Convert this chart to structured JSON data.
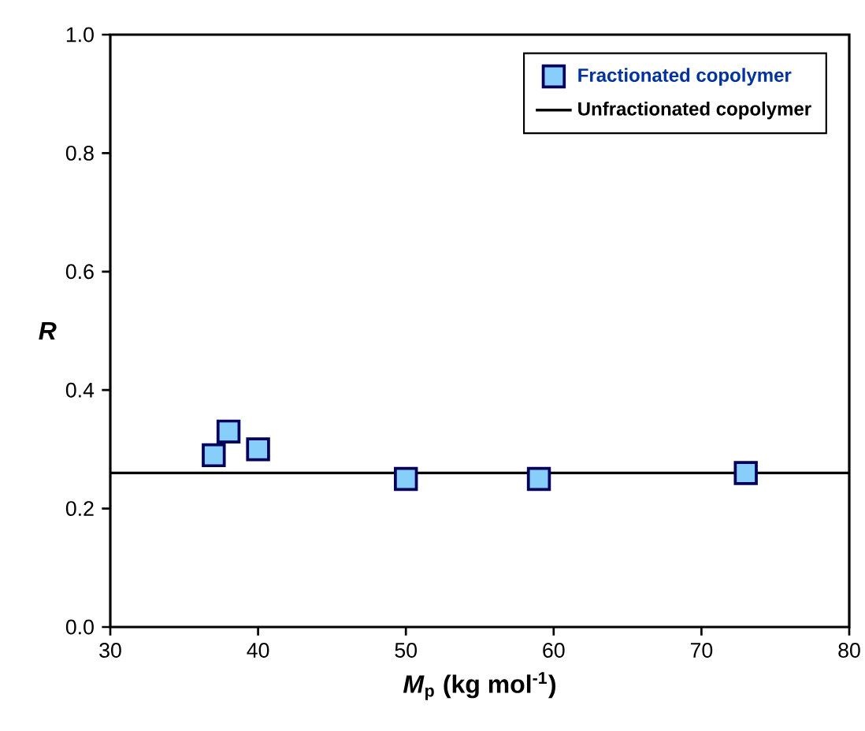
{
  "chart_data": {
    "type": "scatter",
    "xlabel": "*M*$_{p}$ (kg mol$^{-1}$)",
    "ylabel": "R",
    "xlim": [
      30,
      80
    ],
    "ylim": [
      0,
      1
    ],
    "xticks": [
      30,
      40,
      50,
      60,
      70,
      80
    ],
    "yticks": [
      {
        "value": 0,
        "label": "0.0"
      },
      {
        "value": 0.2,
        "label": "0.2"
      },
      {
        "value": 0.4,
        "label": "0.4"
      },
      {
        "value": 0.6,
        "label": "0.6"
      },
      {
        "value": 0.8,
        "label": "0.8"
      },
      {
        "value": 1,
        "label": "1.0"
      }
    ],
    "legend": "top right",
    "grid": false,
    "series": [
      {
        "name": "Fractionated copolymer",
        "color": "#87cefa",
        "marker": "square",
        "x": [
          37,
          38,
          40,
          50,
          59,
          73
        ],
        "values": [
          0.29,
          0.33,
          0.3,
          0.25,
          0.25,
          0.26
        ]
      },
      {
        "name": "Unfractionated copolymer",
        "type": "line",
        "color": "#000000",
        "marker": "none",
        "line_style": "solid",
        "x": [
          30,
          80
        ],
        "values": [
          0.26,
          0.26
        ]
      }
    ]
  }
}
